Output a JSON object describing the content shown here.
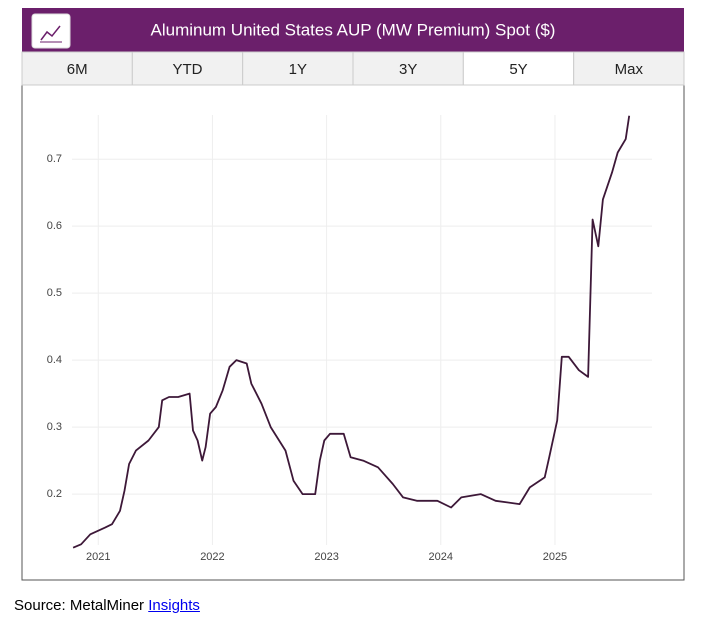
{
  "tabs": [
    "6M",
    "YTD",
    "1Y",
    "3Y",
    "5Y",
    "Max"
  ],
  "active_tab": 4,
  "source": {
    "text": "Source: MetalMiner",
    "link": "Insights"
  },
  "chart_data": {
    "type": "line",
    "title": "Aluminum United States AUP (MW Premium) Spot ($)",
    "x": [
      2020.78,
      2020.85,
      2020.93,
      2021.06,
      2021.12,
      2021.19,
      2021.23,
      2021.27,
      2021.33,
      2021.44,
      2021.53,
      2021.56,
      2021.62,
      2021.7,
      2021.8,
      2021.83,
      2021.87,
      2021.91,
      2021.94,
      2021.98,
      2022.03,
      2022.09,
      2022.15,
      2022.21,
      2022.3,
      2022.34,
      2022.43,
      2022.51,
      2022.64,
      2022.71,
      2022.79,
      2022.9,
      2022.94,
      2022.98,
      2023.03,
      2023.15,
      2023.21,
      2023.32,
      2023.45,
      2023.58,
      2023.67,
      2023.79,
      2023.97,
      2024.09,
      2024.18,
      2024.35,
      2024.48,
      2024.69,
      2024.78,
      2024.91,
      2024.95,
      2025.02,
      2025.06,
      2025.12,
      2025.21,
      2025.29,
      2025.33,
      2025.38,
      2025.42,
      2025.5,
      2025.55,
      2025.62,
      2025.65
    ],
    "series": [
      {
        "name": "AUP",
        "color": "#3d1838",
        "values": [
          0.12,
          0.125,
          0.14,
          0.15,
          0.155,
          0.175,
          0.205,
          0.245,
          0.265,
          0.28,
          0.3,
          0.34,
          0.345,
          0.345,
          0.35,
          0.295,
          0.28,
          0.25,
          0.27,
          0.32,
          0.33,
          0.355,
          0.39,
          0.4,
          0.395,
          0.365,
          0.335,
          0.3,
          0.265,
          0.22,
          0.2,
          0.2,
          0.25,
          0.28,
          0.29,
          0.29,
          0.255,
          0.25,
          0.24,
          0.215,
          0.195,
          0.19,
          0.19,
          0.18,
          0.195,
          0.2,
          0.19,
          0.185,
          0.21,
          0.225,
          0.255,
          0.31,
          0.405,
          0.405,
          0.385,
          0.375,
          0.61,
          0.57,
          0.64,
          0.68,
          0.71,
          0.73,
          0.765
        ]
      }
    ],
    "xlim": [
      2020.77,
      2025.85
    ],
    "xticks": [
      2021,
      2022,
      2023,
      2024,
      2025
    ],
    "ylim": [
      0.124,
      0.766
    ],
    "yticks": [
      0.2,
      0.3,
      0.4,
      0.5,
      0.6,
      0.7
    ],
    "grid": true
  }
}
